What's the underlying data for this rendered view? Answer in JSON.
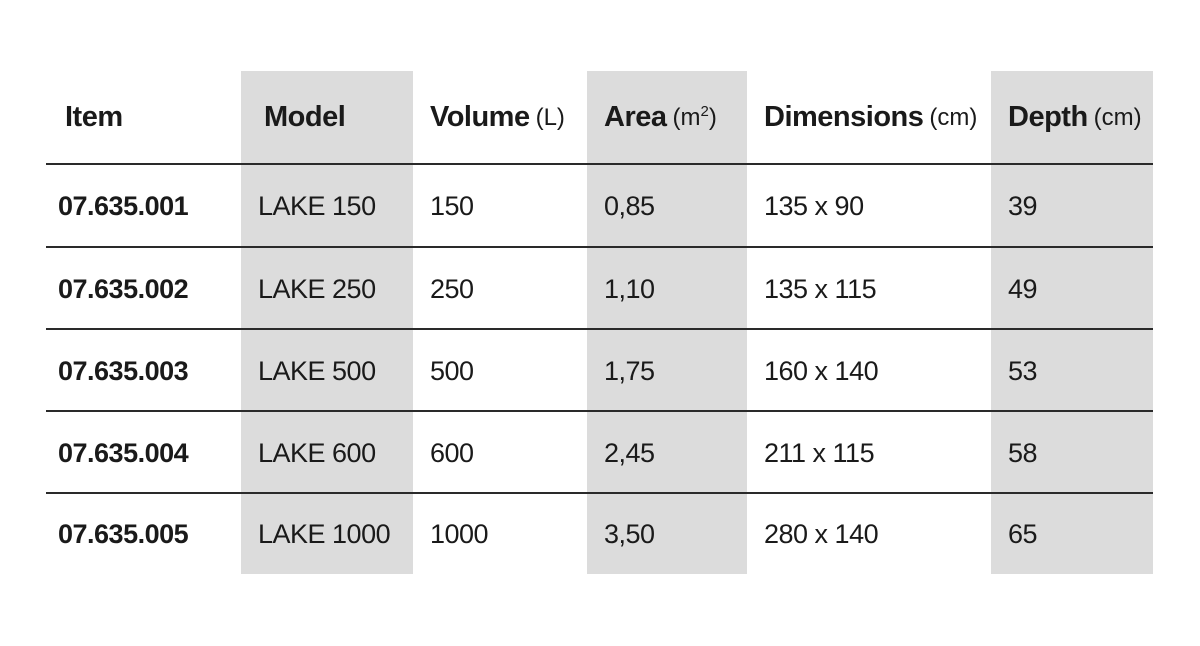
{
  "table": {
    "headers": {
      "item": "Item",
      "model": "Model",
      "volume": "Volume",
      "volume_unit": "(L)",
      "area": "Area",
      "area_unit_base": "(m",
      "area_unit_exp": "2",
      "area_unit_close": ")",
      "dimensions": "Dimensions",
      "dimensions_unit": "(cm)",
      "depth": "Depth",
      "depth_unit": "(cm)"
    },
    "rows": [
      {
        "item": "07.635.001",
        "model": "LAKE 150",
        "volume": "150",
        "area": "0,85",
        "dimensions": "135 x 90",
        "depth": "39"
      },
      {
        "item": "07.635.002",
        "model": "LAKE 250",
        "volume": "250",
        "area": "1,10",
        "dimensions": "135 x 115",
        "depth": "49"
      },
      {
        "item": "07.635.003",
        "model": "LAKE 500",
        "volume": "500",
        "area": "1,75",
        "dimensions": "160 x 140",
        "depth": "53"
      },
      {
        "item": "07.635.004",
        "model": "LAKE 600",
        "volume": "600",
        "area": "2,45",
        "dimensions": "211 x 115",
        "depth": "58"
      },
      {
        "item": "07.635.005",
        "model": "LAKE 1000",
        "volume": "1000",
        "area": "3,50",
        "dimensions": "280 x 140",
        "depth": "65"
      }
    ]
  }
}
